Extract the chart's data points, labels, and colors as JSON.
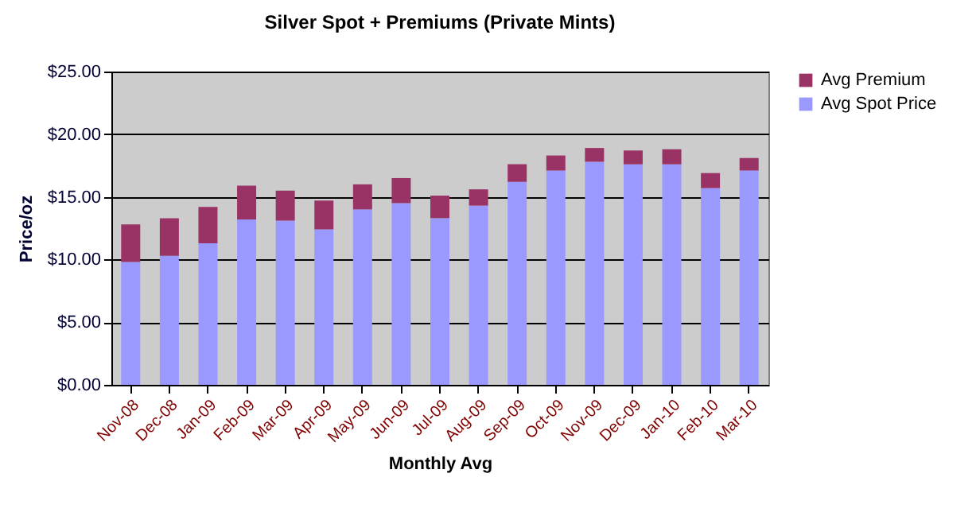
{
  "chart_data": {
    "type": "bar",
    "title": "Silver Spot + Premiums (Private Mints)",
    "xlabel": "Monthly Avg",
    "ylabel": "Price/oz",
    "categories": [
      "Nov-08",
      "Dec-08",
      "Jan-09",
      "Feb-09",
      "Mar-09",
      "Apr-09",
      "May-09",
      "Jun-09",
      "Jul-09",
      "Aug-09",
      "Sep-09",
      "Oct-09",
      "Nov-09",
      "Dec-09",
      "Jan-10",
      "Feb-10",
      "Mar-10"
    ],
    "series": [
      {
        "name": "Avg Spot Price",
        "color": "#9999ff",
        "values": [
          9.8,
          10.3,
          11.3,
          13.2,
          13.1,
          12.4,
          14.0,
          14.5,
          13.3,
          14.3,
          16.2,
          17.1,
          17.8,
          17.6,
          17.6,
          15.7,
          17.1
        ]
      },
      {
        "name": "Avg Premium",
        "color": "#993366",
        "values": [
          3.0,
          3.0,
          2.9,
          2.7,
          2.4,
          2.3,
          2.0,
          2.0,
          1.8,
          1.3,
          1.4,
          1.2,
          1.1,
          1.1,
          1.2,
          1.2,
          1.0
        ]
      }
    ],
    "stacked": true,
    "ylim": [
      0,
      25
    ],
    "yticks": [
      {
        "value": 0,
        "label": "$0.00"
      },
      {
        "value": 5,
        "label": "$5.00"
      },
      {
        "value": 10,
        "label": "$10.00"
      },
      {
        "value": 15,
        "label": "$15.00"
      },
      {
        "value": 20,
        "label": "$20.00"
      },
      {
        "value": 25,
        "label": "$25.00"
      }
    ],
    "grid": "y",
    "legend": "right"
  }
}
